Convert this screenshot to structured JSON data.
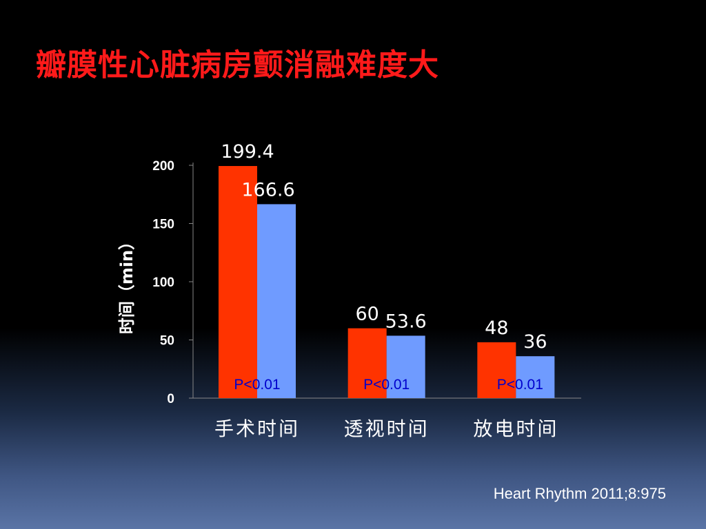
{
  "slide": {
    "title": "瓣膜性心脏病房颤消融难度大",
    "citation": "Heart Rhythm 2011;8:975"
  },
  "colors": {
    "series_1": "#ff3300",
    "series_2": "#6f9bff",
    "text": "#ffffff",
    "p_label": "#0000cc",
    "axis": "#888888"
  },
  "chart_data": {
    "type": "bar",
    "title": "",
    "xlabel": "",
    "ylabel": "时间（min）",
    "categories": [
      "手术时间",
      "透视时间",
      "放电时间"
    ],
    "series": [
      {
        "values": [
          199.4,
          60,
          48
        ],
        "labels": [
          "199.4",
          "60",
          "48"
        ]
      },
      {
        "values": [
          166.6,
          53.6,
          36
        ],
        "labels": [
          "166.6",
          "53.6",
          "36"
        ]
      }
    ],
    "annotations": [
      "P<0.01",
      "P<0.01",
      "P<0.01"
    ],
    "ylim": [
      0,
      200
    ],
    "yticks": [
      0,
      50,
      100,
      150,
      200
    ],
    "grid": false,
    "legend": "none"
  }
}
